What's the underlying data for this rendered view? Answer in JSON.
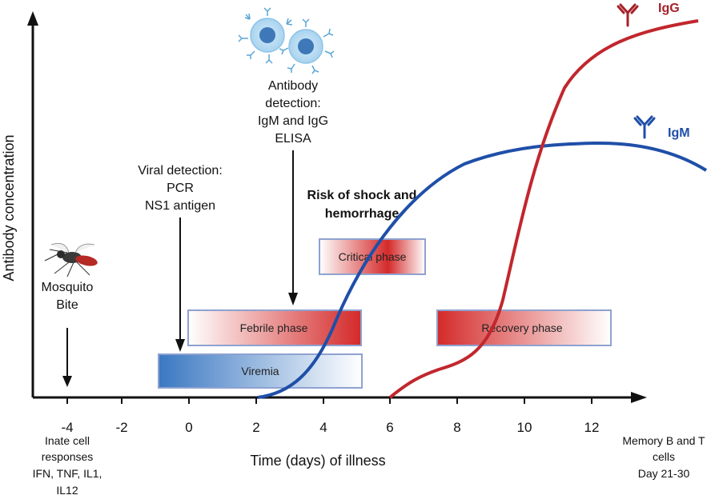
{
  "axes": {
    "y_label": "Antibody concentration",
    "x_label": "Time (days) of illness",
    "x_ticks": [
      "-4",
      "-2",
      "0",
      "2",
      "4",
      "6",
      "8",
      "10",
      "12"
    ]
  },
  "bite": {
    "line1": "Mosquito",
    "line2": "Bite"
  },
  "innate": {
    "l1": "Inate cell",
    "l2": "responses",
    "l3": "IFN, TNF, IL1,",
    "l4": "IL12"
  },
  "memory": {
    "l1": "Memory B and T",
    "l2": "cells",
    "l3": "Day 21-30"
  },
  "viral": {
    "l1": "Viral detection:",
    "l2": "PCR",
    "l3": "NS1 antigen"
  },
  "antibody": {
    "l1": "Antibody",
    "l2": "detection:",
    "l3": "IgM and IgG",
    "l4": "ELISA"
  },
  "risk": {
    "l1": "Risk of shock and",
    "l2": "hemorrhage"
  },
  "phases": {
    "critical": "Critical phase",
    "febrile": "Febrile phase",
    "recovery": "Recovery phase",
    "viremia": "Viremia"
  },
  "curves": {
    "igg": {
      "label": "IgG",
      "color": "#c1272d"
    },
    "igm": {
      "label": "IgM",
      "color": "#1f4fa8"
    }
  }
}
